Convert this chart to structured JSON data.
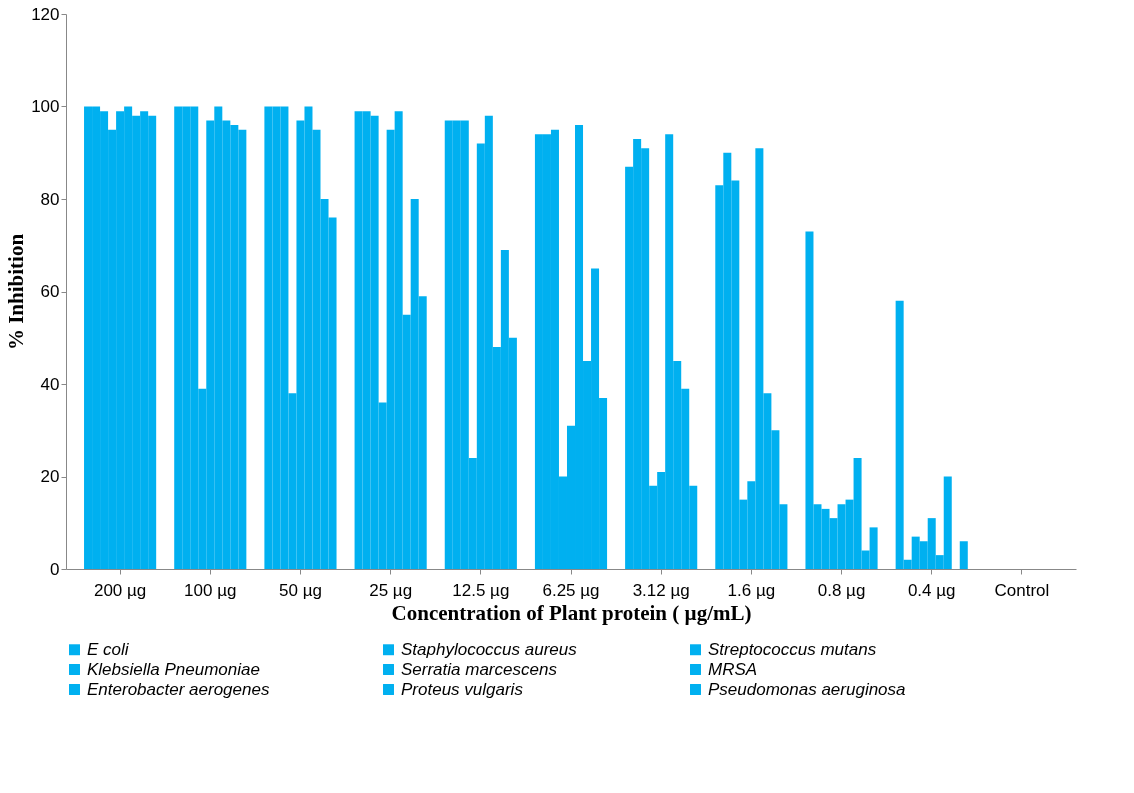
{
  "chart_data": {
    "type": "bar",
    "xlabel": "Concentration of Plant protein  ( µg/mL)",
    "ylabel": "% Inhibition",
    "categories": [
      "200 µg",
      "100 µg",
      "50 µg",
      "25 µg",
      "12.5 µg",
      "6.25 µg",
      "3.12 µg",
      "1.6 µg",
      "0.8 µg",
      "0.4 µg",
      "Control"
    ],
    "ylim": [
      0,
      120
    ],
    "yticks": [
      0,
      20,
      40,
      60,
      80,
      100,
      120
    ],
    "grid": false,
    "legend": "bottom",
    "series": [
      {
        "name": "E coli",
        "color": "#00b0f0",
        "values": [
          100,
          100,
          100,
          99,
          97,
          94,
          87,
          83,
          73,
          58,
          0
        ]
      },
      {
        "name": "Staphylococcus aureus",
        "color": "#00b0f0",
        "values": [
          100,
          100,
          100,
          99,
          97,
          94,
          93,
          90,
          14,
          2,
          0
        ]
      },
      {
        "name": "Streptococcus mutans",
        "color": "#00b0f0",
        "values": [
          99,
          100,
          100,
          98,
          97,
          95,
          91,
          84,
          13,
          7,
          0
        ]
      },
      {
        "name": "Klebsiella Pneumoniae",
        "color": "#00b0f0",
        "values": [
          95,
          39,
          38,
          36,
          24,
          20,
          18,
          15,
          11,
          6,
          0
        ]
      },
      {
        "name": "Serratia marcescens",
        "color": "#00b0f0",
        "values": [
          99,
          97,
          97,
          95,
          92,
          31,
          21,
          19,
          14,
          11,
          0
        ]
      },
      {
        "name": "MRSA",
        "color": "#00b0f0",
        "values": [
          100,
          100,
          100,
          99,
          98,
          96,
          94,
          91,
          15,
          3,
          0
        ]
      },
      {
        "name": "Enterobacter aerogenes",
        "color": "#00b0f0",
        "values": [
          98,
          97,
          95,
          55,
          48,
          45,
          45,
          38,
          24,
          20,
          0
        ]
      },
      {
        "name": "Proteus vulgaris",
        "color": "#00b0f0",
        "values": [
          99,
          96,
          80,
          80,
          69,
          65,
          39,
          30,
          4,
          0,
          0
        ]
      },
      {
        "name": "Pseudomonas aeruginosa",
        "color": "#00b0f0",
        "values": [
          98,
          95,
          76,
          59,
          50,
          37,
          18,
          14,
          9,
          6,
          0
        ]
      }
    ]
  }
}
